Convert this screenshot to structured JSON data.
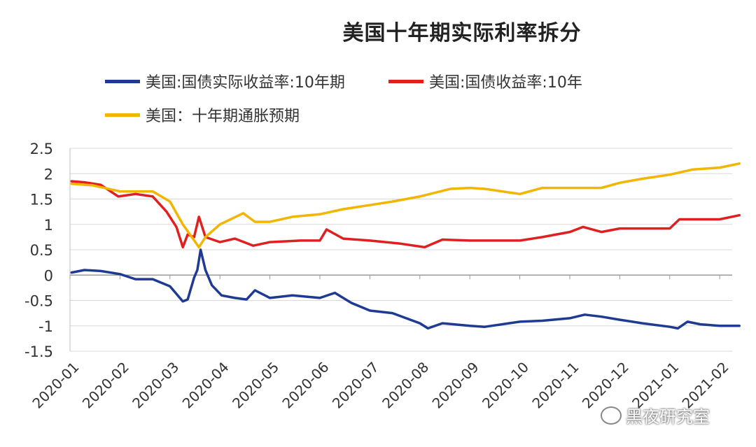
{
  "chart_data": {
    "type": "line",
    "title": "美国十年期实际利率拆分",
    "xlabel": "",
    "ylabel": "",
    "ylim": [
      -1.5,
      2.5
    ],
    "yticks": [
      "2.5",
      "2",
      "1.5",
      "1",
      "0.5",
      "0",
      "-0.5",
      "-1",
      "-1.5"
    ],
    "x_tick_labels": [
      "2020-01",
      "2020-02",
      "2020-03",
      "2020-04",
      "2020-05",
      "2020-06",
      "2020-07",
      "2020-08",
      "2020-09",
      "2020-10",
      "2020-11",
      "2020-12",
      "2021-01",
      "2021-02"
    ],
    "grid": "horizontal",
    "legend_position": "top",
    "series": [
      {
        "name": "美国:国债实际收益率:10年期",
        "color": "#1f3a93",
        "points": [
          [
            "2020-01-02",
            0.05
          ],
          [
            "2020-01-10",
            0.1
          ],
          [
            "2020-01-20",
            0.08
          ],
          [
            "2020-02-01",
            0.02
          ],
          [
            "2020-02-10",
            -0.08
          ],
          [
            "2020-02-20",
            -0.08
          ],
          [
            "2020-03-01",
            -0.22
          ],
          [
            "2020-03-09",
            -0.52
          ],
          [
            "2020-03-12",
            -0.48
          ],
          [
            "2020-03-16",
            -0.05
          ],
          [
            "2020-03-18",
            0.1
          ],
          [
            "2020-03-20",
            0.5
          ],
          [
            "2020-03-23",
            0.1
          ],
          [
            "2020-03-27",
            -0.2
          ],
          [
            "2020-04-02",
            -0.4
          ],
          [
            "2020-04-10",
            -0.45
          ],
          [
            "2020-04-17",
            -0.48
          ],
          [
            "2020-04-22",
            -0.3
          ],
          [
            "2020-05-01",
            -0.45
          ],
          [
            "2020-05-15",
            -0.4
          ],
          [
            "2020-06-01",
            -0.45
          ],
          [
            "2020-06-10",
            -0.35
          ],
          [
            "2020-06-20",
            -0.55
          ],
          [
            "2020-07-01",
            -0.7
          ],
          [
            "2020-07-15",
            -0.75
          ],
          [
            "2020-08-01",
            -0.95
          ],
          [
            "2020-08-06",
            -1.05
          ],
          [
            "2020-08-15",
            -0.95
          ],
          [
            "2020-09-01",
            -1.0
          ],
          [
            "2020-09-10",
            -1.02
          ],
          [
            "2020-10-01",
            -0.92
          ],
          [
            "2020-10-15",
            -0.9
          ],
          [
            "2020-11-01",
            -0.85
          ],
          [
            "2020-11-10",
            -0.78
          ],
          [
            "2020-11-20",
            -0.82
          ],
          [
            "2020-12-01",
            -0.88
          ],
          [
            "2020-12-15",
            -0.95
          ],
          [
            "2021-01-01",
            -1.02
          ],
          [
            "2021-01-06",
            -1.05
          ],
          [
            "2021-01-12",
            -0.92
          ],
          [
            "2021-01-20",
            -0.97
          ],
          [
            "2021-02-01",
            -1.0
          ],
          [
            "2021-02-12",
            -1.0
          ]
        ]
      },
      {
        "name": "美国:国债收益率:10年",
        "color": "#e02020",
        "points": [
          [
            "2020-01-02",
            1.85
          ],
          [
            "2020-01-10",
            1.83
          ],
          [
            "2020-01-20",
            1.78
          ],
          [
            "2020-01-31",
            1.55
          ],
          [
            "2020-02-10",
            1.6
          ],
          [
            "2020-02-20",
            1.55
          ],
          [
            "2020-02-28",
            1.25
          ],
          [
            "2020-03-05",
            0.95
          ],
          [
            "2020-03-09",
            0.55
          ],
          [
            "2020-03-12",
            0.8
          ],
          [
            "2020-03-16",
            0.75
          ],
          [
            "2020-03-19",
            1.15
          ],
          [
            "2020-03-23",
            0.75
          ],
          [
            "2020-04-01",
            0.65
          ],
          [
            "2020-04-10",
            0.72
          ],
          [
            "2020-04-21",
            0.58
          ],
          [
            "2020-05-01",
            0.65
          ],
          [
            "2020-05-20",
            0.68
          ],
          [
            "2020-06-01",
            0.68
          ],
          [
            "2020-06-05",
            0.9
          ],
          [
            "2020-06-15",
            0.72
          ],
          [
            "2020-07-01",
            0.68
          ],
          [
            "2020-07-20",
            0.62
          ],
          [
            "2020-08-04",
            0.55
          ],
          [
            "2020-08-15",
            0.7
          ],
          [
            "2020-09-01",
            0.68
          ],
          [
            "2020-10-01",
            0.68
          ],
          [
            "2020-10-15",
            0.75
          ],
          [
            "2020-11-01",
            0.85
          ],
          [
            "2020-11-09",
            0.95
          ],
          [
            "2020-11-20",
            0.85
          ],
          [
            "2020-12-01",
            0.92
          ],
          [
            "2020-12-15",
            0.92
          ],
          [
            "2021-01-01",
            0.92
          ],
          [
            "2021-01-07",
            1.1
          ],
          [
            "2021-01-20",
            1.1
          ],
          [
            "2021-02-01",
            1.1
          ],
          [
            "2021-02-12",
            1.18
          ]
        ]
      },
      {
        "name": "美国：十年期通胀预期",
        "color": "#f2b500",
        "points": [
          [
            "2020-01-02",
            1.8
          ],
          [
            "2020-01-15",
            1.77
          ],
          [
            "2020-02-01",
            1.65
          ],
          [
            "2020-02-20",
            1.65
          ],
          [
            "2020-03-01",
            1.45
          ],
          [
            "2020-03-09",
            1.0
          ],
          [
            "2020-03-19",
            0.55
          ],
          [
            "2020-03-23",
            0.75
          ],
          [
            "2020-04-01",
            1.0
          ],
          [
            "2020-04-15",
            1.22
          ],
          [
            "2020-04-22",
            1.05
          ],
          [
            "2020-05-01",
            1.05
          ],
          [
            "2020-05-15",
            1.15
          ],
          [
            "2020-06-01",
            1.2
          ],
          [
            "2020-06-15",
            1.3
          ],
          [
            "2020-07-01",
            1.38
          ],
          [
            "2020-07-15",
            1.45
          ],
          [
            "2020-08-01",
            1.55
          ],
          [
            "2020-08-20",
            1.7
          ],
          [
            "2020-09-01",
            1.72
          ],
          [
            "2020-09-10",
            1.7
          ],
          [
            "2020-10-01",
            1.6
          ],
          [
            "2020-10-15",
            1.72
          ],
          [
            "2020-11-01",
            1.72
          ],
          [
            "2020-11-20",
            1.72
          ],
          [
            "2020-12-01",
            1.82
          ],
          [
            "2020-12-15",
            1.9
          ],
          [
            "2021-01-01",
            1.98
          ],
          [
            "2021-01-15",
            2.08
          ],
          [
            "2021-02-01",
            2.12
          ],
          [
            "2021-02-12",
            2.2
          ]
        ]
      }
    ]
  },
  "watermark": {
    "icon": "wechat-icon",
    "text": "黑夜研究室"
  }
}
